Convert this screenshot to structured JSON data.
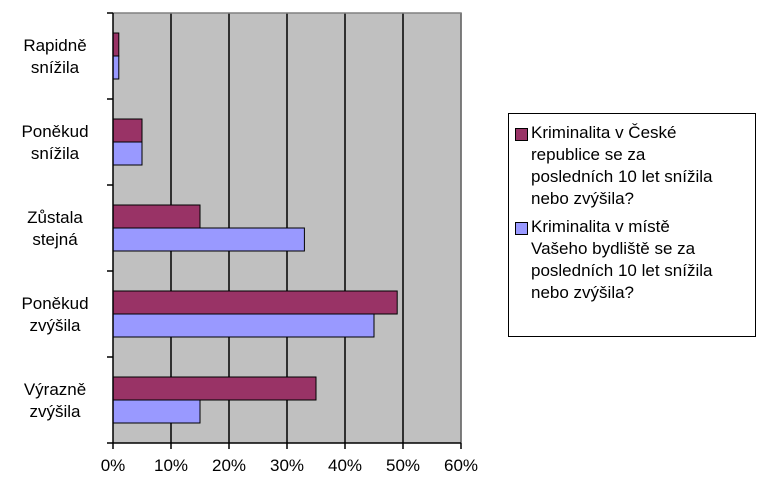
{
  "colors": {
    "series1": "#993366",
    "series2": "#9999ff",
    "plot_background": "#c0c0c0",
    "gridline": "#000000",
    "plot_border": "#808080"
  },
  "chart_data": {
    "type": "bar",
    "orientation": "horizontal",
    "categories": [
      "Výrazně zvýšila",
      "Poněkud zvýšila",
      "Zůstala stejná",
      "Poněkud snížila",
      "Rapidně snížila"
    ],
    "category_lines": [
      [
        "Výrazně",
        "zvýšila"
      ],
      [
        "Poněkud",
        "zvýšila"
      ],
      [
        "Zůstala",
        "stejná"
      ],
      [
        "Poněkud",
        "snížila"
      ],
      [
        "Rapidně",
        "snížila"
      ]
    ],
    "series": [
      {
        "name": "Kriminalita v České republice se za posledních 10 let snížila nebo zvýšila?",
        "legend_lines": [
          "Kriminalita v České",
          "republice se za",
          "posledních 10 let snížila",
          "nebo zvýšila?"
        ],
        "values": [
          35,
          49,
          15,
          5,
          1
        ]
      },
      {
        "name": "Kriminalita v místě Vašeho bydliště se za posledních 10 let snížila nebo zvýšila?",
        "legend_lines": [
          "Kriminalita v místě",
          "Vašeho bydliště se za",
          "posledních 10 let snížila",
          "nebo zvýšila?"
        ],
        "values": [
          15,
          45,
          33,
          5,
          1
        ]
      }
    ],
    "xaxis_ticks": [
      "0%",
      "10%",
      "20%",
      "30%",
      "40%",
      "50%",
      "60%"
    ],
    "xlim": [
      0,
      60
    ],
    "grid": true,
    "legend_position": "right"
  }
}
